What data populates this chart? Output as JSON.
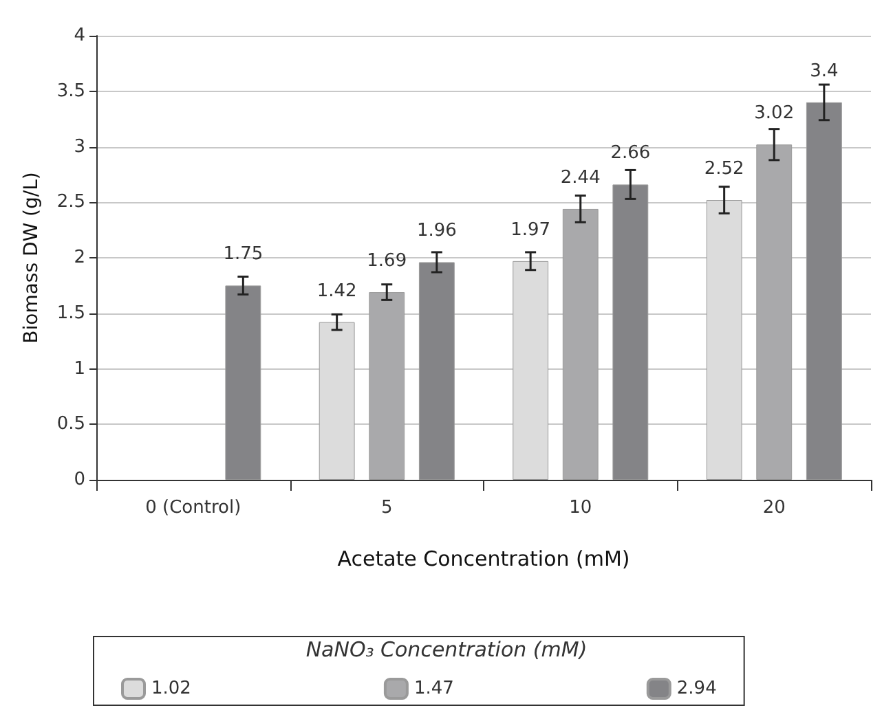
{
  "chart_data": {
    "type": "bar",
    "xlabel": "Acetate Concentration (mM)",
    "ylabel": "Biomass DW (g/L)",
    "legend_title": "NaNO₃ Concentration (mM)",
    "categories": [
      "0 (Control)",
      "5",
      "10",
      "20"
    ],
    "series": [
      {
        "name": "1.02",
        "color": "#dcdcdc",
        "values": [
          null,
          1.42,
          1.97,
          2.52
        ],
        "errors": [
          null,
          0.07,
          0.08,
          0.12
        ]
      },
      {
        "name": "1.47",
        "color": "#a9a9ab",
        "values": [
          null,
          1.69,
          2.44,
          3.02
        ],
        "errors": [
          null,
          0.07,
          0.12,
          0.14
        ]
      },
      {
        "name": "2.94",
        "color": "#848487",
        "values": [
          1.75,
          1.96,
          2.66,
          3.4
        ],
        "errors": [
          0.08,
          0.09,
          0.13,
          0.16
        ]
      }
    ],
    "ylim": [
      0,
      4
    ],
    "yticks": [
      0,
      0.5,
      1,
      1.5,
      2,
      2.5,
      3,
      3.5,
      4
    ],
    "grid": "y",
    "legend": "bottom",
    "data_labels": true
  }
}
